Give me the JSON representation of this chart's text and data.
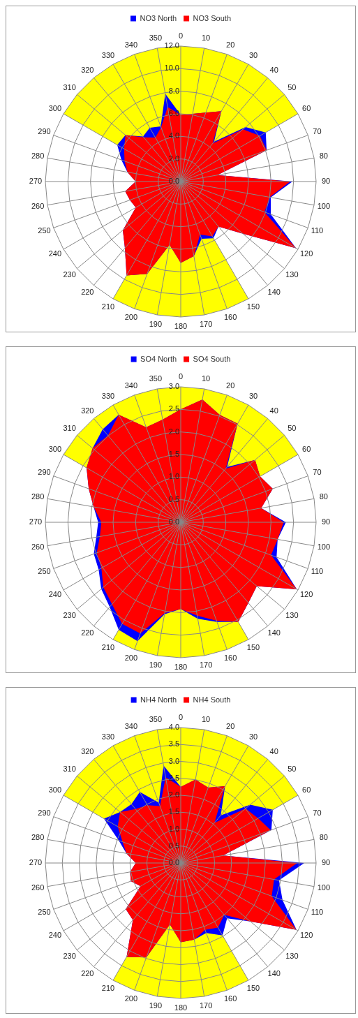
{
  "chart_data": [
    {
      "type": "radar",
      "categories": [
        "0",
        "10",
        "20",
        "30",
        "40",
        "50",
        "60",
        "70",
        "80",
        "90",
        "100",
        "110",
        "120",
        "130",
        "140",
        "150",
        "160",
        "170",
        "180",
        "190",
        "200",
        "210",
        "220",
        "230",
        "240",
        "250",
        "260",
        "270",
        "280",
        "290",
        "300",
        "310",
        "320",
        "330",
        "340",
        "350"
      ],
      "series": [
        {
          "color": "#ffff00",
          "values": [
            12,
            12,
            12,
            12,
            12,
            12,
            12,
            0,
            0,
            0,
            0,
            0,
            0,
            0,
            0,
            12,
            12,
            12,
            12,
            12,
            12,
            12,
            0,
            0,
            0,
            0,
            0,
            0,
            0,
            0,
            12,
            12,
            12,
            12,
            12,
            12
          ]
        },
        {
          "name": "NO3 North",
          "color": "#0000ff",
          "values": [
            5.9,
            6.1,
            6.5,
            7.2,
            4.6,
            7.5,
            8.7,
            8.1,
            3.3,
            9.9,
            8.1,
            8.5,
            11.8,
            7.2,
            5.2,
            5.8,
            5.4,
            6.7,
            7.2,
            5.7,
            8.7,
            9.6,
            7.7,
            6.7,
            4.6,
            4.8,
            5.0,
            4.0,
            4.8,
            5.6,
            6.5,
            6.4,
            5.2,
            5.5,
            5.2,
            7.9
          ]
        },
        {
          "name": "NO3 South",
          "color": "#ff0000",
          "values": [
            5.9,
            6.1,
            6.5,
            7.2,
            4.4,
            7.2,
            8.1,
            8.1,
            3.3,
            9.7,
            8.0,
            7.9,
            11.8,
            7.2,
            5.2,
            5.6,
            5.0,
            6.7,
            7.2,
            5.7,
            8.7,
            9.6,
            7.7,
            6.7,
            4.6,
            4.8,
            5.0,
            4.0,
            4.8,
            5.3,
            5.8,
            6.4,
            5.1,
            4.5,
            5.1,
            6.7
          ]
        }
      ],
      "ylim": [
        0,
        12
      ],
      "yticks": [
        {
          "value": 0,
          "label": "0.0"
        },
        {
          "value": 2,
          "label": "2.0"
        },
        {
          "value": 4,
          "label": "4.0"
        },
        {
          "value": 6,
          "label": "6.0"
        },
        {
          "value": 8,
          "label": "8.0"
        },
        {
          "value": 10,
          "label": "10.0"
        },
        {
          "value": 12,
          "label": "12.0"
        }
      ],
      "grid": true,
      "legend": "top"
    },
    {
      "type": "radar",
      "categories": [
        "0",
        "10",
        "20",
        "30",
        "40",
        "50",
        "60",
        "70",
        "80",
        "90",
        "100",
        "110",
        "120",
        "130",
        "140",
        "150",
        "160",
        "170",
        "180",
        "190",
        "200",
        "210",
        "220",
        "230",
        "240",
        "250",
        "260",
        "270",
        "280",
        "290",
        "300",
        "310",
        "320",
        "330",
        "340",
        "350"
      ],
      "series": [
        {
          "color": "#ffff00",
          "values": [
            3,
            3,
            3,
            3,
            3,
            3,
            3,
            0,
            0,
            0,
            0,
            0,
            0,
            0,
            0,
            3,
            3,
            3,
            3,
            3,
            3,
            3,
            0,
            0,
            0,
            0,
            0,
            0,
            0,
            0,
            3,
            3,
            3,
            3,
            3,
            3
          ]
        },
        {
          "name": "SO4 North",
          "color": "#0000ff",
          "values": [
            2.5,
            2.76,
            2.53,
            2.52,
            1.6,
            2.15,
            2.03,
            2.17,
            1.81,
            2.33,
            2.18,
            2.26,
            2.97,
            2.2,
            2.33,
            2.55,
            2.35,
            2.17,
            1.92,
            2.07,
            2.8,
            2.75,
            2.45,
            2.3,
            2.1,
            2.05,
            1.9,
            1.83,
            1.96,
            2.17,
            2.41,
            2.55,
            2.69,
            2.75,
            2.24,
            2.31
          ]
        },
        {
          "name": "SO4 South",
          "color": "#ff0000",
          "values": [
            2.5,
            2.76,
            2.53,
            2.52,
            1.55,
            2.15,
            2.03,
            2.17,
            1.81,
            2.28,
            2.18,
            2.13,
            2.97,
            2.2,
            2.33,
            2.55,
            2.32,
            2.1,
            1.92,
            2.04,
            2.62,
            2.6,
            2.37,
            2.24,
            2.03,
            1.98,
            1.82,
            1.76,
            1.96,
            2.17,
            2.41,
            2.55,
            2.51,
            2.75,
            2.24,
            2.31
          ]
        }
      ],
      "ylim": [
        0,
        3
      ],
      "yticks": [
        {
          "value": 0,
          "label": "0.0"
        },
        {
          "value": 0.5,
          "label": "0.5"
        },
        {
          "value": 1,
          "label": "1.0"
        },
        {
          "value": 1.5,
          "label": "1.5"
        },
        {
          "value": 2,
          "label": "2.0"
        },
        {
          "value": 2.5,
          "label": "2.5"
        },
        {
          "value": 3,
          "label": "3.0"
        }
      ],
      "grid": true,
      "legend": "top"
    },
    {
      "type": "radar",
      "categories": [
        "0",
        "10",
        "20",
        "30",
        "40",
        "50",
        "60",
        "70",
        "80",
        "90",
        "100",
        "110",
        "120",
        "130",
        "140",
        "150",
        "160",
        "170",
        "180",
        "190",
        "200",
        "210",
        "220",
        "230",
        "240",
        "250",
        "260",
        "270",
        "280",
        "290",
        "300",
        "310",
        "320",
        "330",
        "340",
        "350"
      ],
      "series": [
        {
          "color": "#ffff00",
          "values": [
            4,
            4,
            4,
            4,
            4,
            4,
            4,
            0,
            0,
            0,
            0,
            0,
            0,
            0,
            0,
            4,
            4,
            4,
            4,
            4,
            4,
            4,
            0,
            0,
            0,
            0,
            0,
            0,
            0,
            0,
            4,
            4,
            4,
            4,
            4,
            4
          ]
        },
        {
          "name": "NH4 North",
          "color": "#0000ff",
          "values": [
            2.25,
            2.5,
            2.37,
            2.62,
            1.84,
            2.68,
            3.14,
            2.85,
            1.27,
            3.65,
            2.95,
            3.2,
            3.95,
            2.69,
            2.13,
            2.47,
            2.2,
            2.3,
            2.34,
            1.84,
            2.97,
            3.2,
            2.2,
            2.12,
            1.37,
            1.57,
            1.52,
            1.33,
            1.63,
            1.95,
            2.62,
            2.34,
            2.27,
            2.42,
            1.9,
            2.92
          ]
        },
        {
          "name": "NH4 South",
          "color": "#ff0000",
          "values": [
            2.25,
            2.5,
            2.37,
            2.62,
            1.55,
            2.5,
            2.64,
            2.83,
            1.27,
            3.44,
            2.8,
            2.86,
            3.95,
            2.69,
            2.0,
            2.2,
            2.1,
            2.3,
            2.34,
            1.84,
            2.97,
            3.2,
            2.2,
            2.12,
            1.37,
            1.57,
            1.52,
            1.33,
            1.63,
            1.83,
            2.15,
            2.34,
            2.08,
            1.97,
            1.79,
            2.57
          ]
        }
      ],
      "ylim": [
        0,
        4
      ],
      "yticks": [
        {
          "value": 0,
          "label": "0.0"
        },
        {
          "value": 0.5,
          "label": "0.5"
        },
        {
          "value": 1,
          "label": "1.0"
        },
        {
          "value": 1.5,
          "label": "1.5"
        },
        {
          "value": 2,
          "label": "2.0"
        },
        {
          "value": 2.5,
          "label": "2.5"
        },
        {
          "value": 3,
          "label": "3.0"
        },
        {
          "value": 3.5,
          "label": "3.5"
        },
        {
          "value": 4,
          "label": "4.0"
        }
      ],
      "grid": true,
      "legend": "top"
    }
  ]
}
